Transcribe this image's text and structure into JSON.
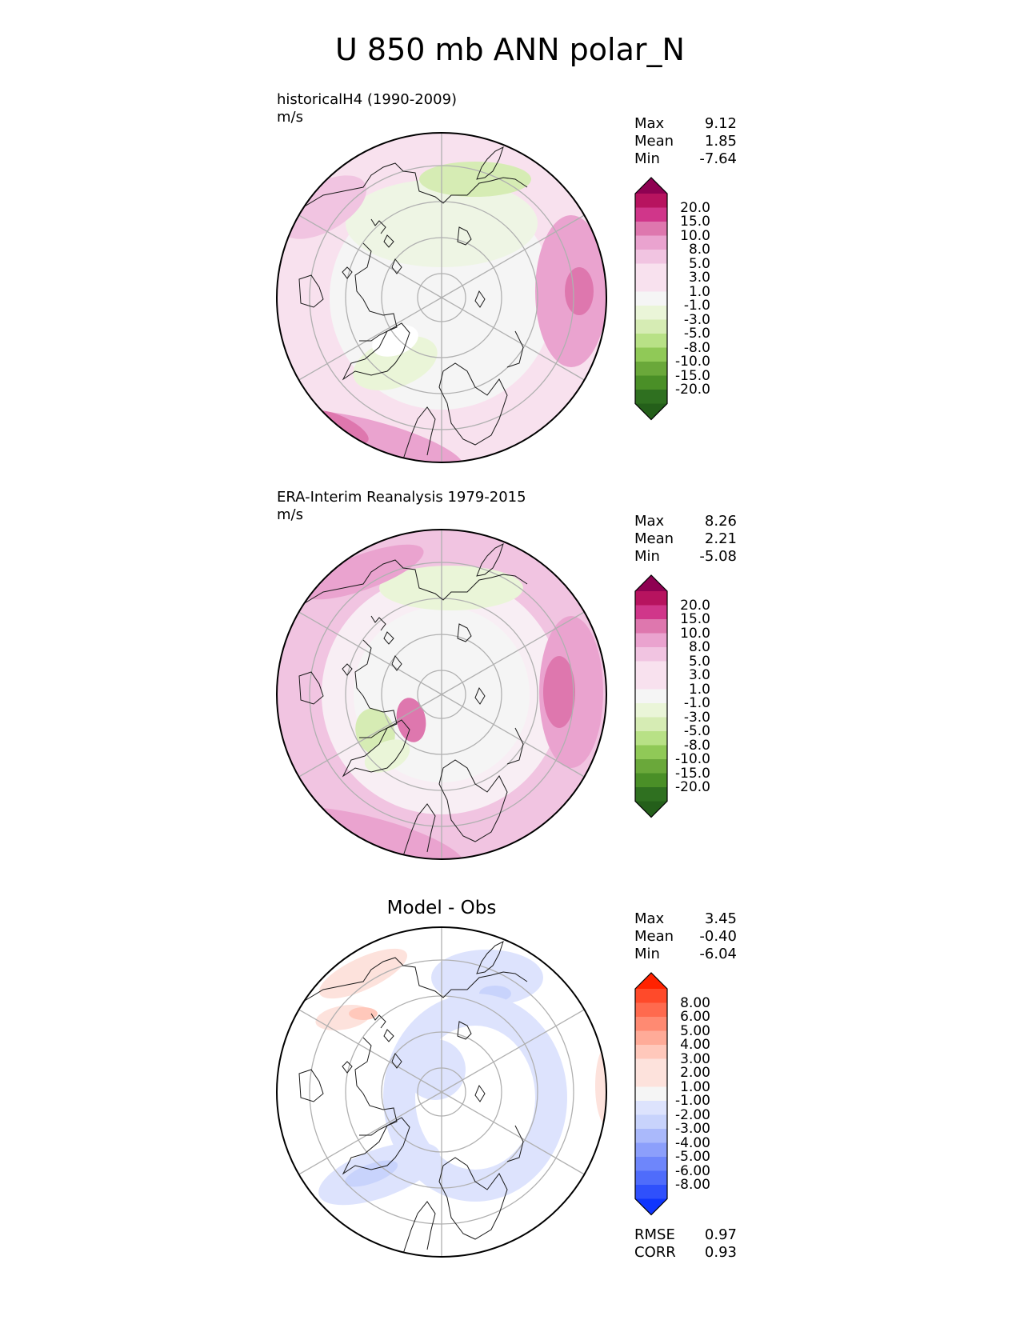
{
  "title": "U 850 mb ANN polar_N",
  "colors": {
    "div_pos": [
      "#8e0152",
      "#b7135f",
      "#d0368a",
      "#de77ae",
      "#eaa3cf",
      "#f1c4e1",
      "#f8e1ee",
      "#f5f5f5"
    ],
    "div_neg": [
      "#eaf5d8",
      "#d6ecb4",
      "#b8e186",
      "#90c957",
      "#6aa83a",
      "#4a8f27",
      "#2f7020",
      "#245f1a"
    ],
    "diff_pos": [
      "#ff2200",
      "#ff4a2a",
      "#ff6a4e",
      "#ff8a72",
      "#ffab98",
      "#ffc8bb",
      "#fde2dc",
      "#ffffff"
    ],
    "diff_neg": [
      "#dde3fd",
      "#c8d3fc",
      "#aab9fb",
      "#8c9ffb",
      "#6e86fb",
      "#4f6cfb",
      "#2f50fc",
      "#0f35fe"
    ]
  },
  "panels": [
    {
      "label_line1": "historicalH4 (1990-2009)",
      "label_line2": "m/s",
      "center_title": "",
      "stats": [
        {
          "name": "Max",
          "value": "9.12"
        },
        {
          "name": "Mean",
          "value": "1.85"
        },
        {
          "name": "Min",
          "value": "-7.64"
        }
      ],
      "colorbar_ticks": [
        "20.0",
        "15.0",
        "10.0",
        "8.0",
        "5.0",
        "3.0",
        "1.0",
        "-1.0",
        "-3.0",
        "-5.0",
        "-8.0",
        "-10.0",
        "-15.0",
        "-20.0"
      ]
    },
    {
      "label_line1": "ERA-Interim Reanalysis 1979-2015",
      "label_line2": "m/s",
      "center_title": "",
      "stats": [
        {
          "name": "Max",
          "value": "8.26"
        },
        {
          "name": "Mean",
          "value": "2.21"
        },
        {
          "name": "Min",
          "value": "-5.08"
        }
      ],
      "colorbar_ticks": [
        "20.0",
        "15.0",
        "10.0",
        "8.0",
        "5.0",
        "3.0",
        "1.0",
        "-1.0",
        "-3.0",
        "-5.0",
        "-8.0",
        "-10.0",
        "-15.0",
        "-20.0"
      ]
    },
    {
      "label_line1": "",
      "label_line2": "",
      "center_title": "Model - Obs",
      "stats": [
        {
          "name": "Max",
          "value": "3.45"
        },
        {
          "name": "Mean",
          "value": "-0.40"
        },
        {
          "name": "Min",
          "value": "-6.04"
        }
      ],
      "colorbar_ticks": [
        "8.00",
        "6.00",
        "5.00",
        "4.00",
        "3.00",
        "2.00",
        "1.00",
        "-1.00",
        "-2.00",
        "-3.00",
        "-4.00",
        "-5.00",
        "-6.00",
        "-8.00"
      ],
      "metrics": [
        {
          "name": "RMSE",
          "value": "0.97"
        },
        {
          "name": "CORR",
          "value": "0.93"
        }
      ]
    }
  ]
}
